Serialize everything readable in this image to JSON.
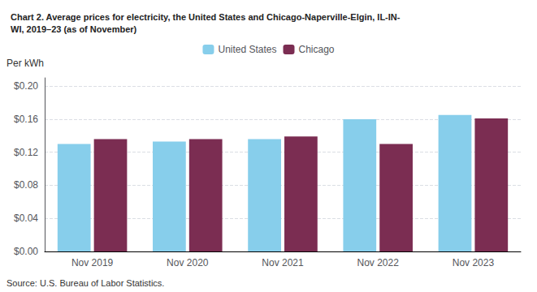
{
  "chart_data": {
    "type": "bar",
    "title": "Chart 2. Average prices for electricity, the United States and Chicago-Naperville-Elgin, IL-IN-\nWI, 2019–23 (as of November)",
    "ylabel": "Per kWh",
    "annotations": [
      "Source: U.S. Bureau of Labor Statistics."
    ],
    "categories": [
      "Nov 2019",
      "Nov 2020",
      "Nov 2021",
      "Nov 2022",
      "Nov 2023"
    ],
    "series": [
      {
        "name": "United States",
        "color": "#87CEEB",
        "values": [
          0.13,
          0.133,
          0.136,
          0.16,
          0.165
        ]
      },
      {
        "name": "Chicago",
        "color": "#7B2D52",
        "values": [
          0.136,
          0.136,
          0.139,
          0.13,
          0.161
        ]
      }
    ],
    "ylim": [
      0,
      0.21
    ],
    "yticks": [
      {
        "value": 0.0,
        "label": "$0.00"
      },
      {
        "value": 0.04,
        "label": "$0.04"
      },
      {
        "value": 0.08,
        "label": "$0.08"
      },
      {
        "value": 0.12,
        "label": "$0.12"
      },
      {
        "value": 0.16,
        "label": "$0.16"
      },
      {
        "value": 0.2,
        "label": "$0.20"
      }
    ],
    "grid": true,
    "legend": "top"
  }
}
